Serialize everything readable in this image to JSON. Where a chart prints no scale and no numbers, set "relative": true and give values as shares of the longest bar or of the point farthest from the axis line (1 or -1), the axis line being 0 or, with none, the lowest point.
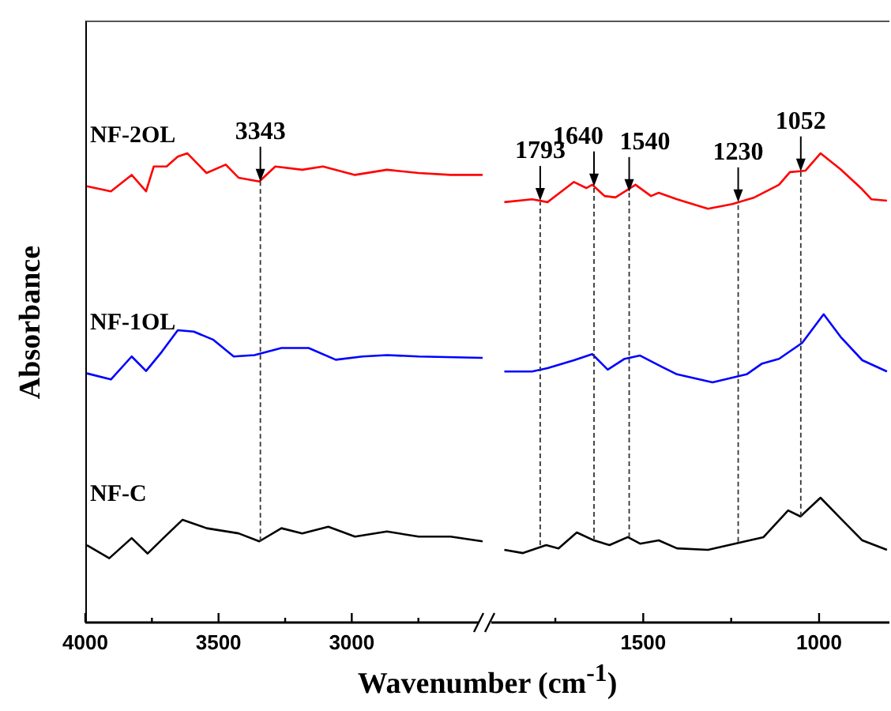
{
  "chart_data": [
    {
      "type": "line",
      "relative": true,
      "ylabel": "Absorbance",
      "xlabel": "Wavenumber (cm$^{-1}$)",
      "xlim": [
        4000,
        2500
      ],
      "xticks": [
        4000,
        {
          "value": 3750,
          "label": null
        },
        3500,
        {
          "value": 3250,
          "label": null
        },
        3000,
        {
          "value": 2750,
          "label": null
        }
      ],
      "series": [
        {
          "name": "NF-2OL",
          "color": "#ff0000",
          "x": [
            3994,
            3904,
            3826,
            3772,
            3743,
            3695,
            3653,
            3617,
            3545,
            3473,
            3425,
            3347,
            3287,
            3186,
            3108,
            2988,
            2868,
            2749,
            2629,
            2509
          ],
          "values": [
            0.93,
            0.919,
            0.954,
            0.919,
            0.972,
            0.972,
            0.993,
            1.0,
            0.958,
            0.976,
            0.948,
            0.94,
            0.972,
            0.965,
            0.972,
            0.954,
            0.965,
            0.958,
            0.954,
            0.954
          ]
        },
        {
          "name": "NF-1OL",
          "color": "#0000ff",
          "x": [
            3994,
            3904,
            3826,
            3772,
            3713,
            3653,
            3593,
            3521,
            3443,
            3365,
            3264,
            3162,
            3060,
            2960,
            2868,
            2749,
            2509
          ],
          "values": [
            0.531,
            0.518,
            0.567,
            0.536,
            0.577,
            0.623,
            0.62,
            0.603,
            0.567,
            0.57,
            0.585,
            0.585,
            0.56,
            0.567,
            0.57,
            0.567,
            0.564
          ]
        },
        {
          "name": "NF-C",
          "color": "#000000",
          "x": [
            3994,
            3910,
            3826,
            3766,
            3707,
            3635,
            3545,
            3425,
            3347,
            3264,
            3186,
            3088,
            2988,
            2868,
            2749,
            2629,
            2509
          ],
          "values": [
            0.165,
            0.137,
            0.18,
            0.147,
            0.18,
            0.219,
            0.201,
            0.19,
            0.173,
            0.201,
            0.19,
            0.204,
            0.183,
            0.194,
            0.183,
            0.183,
            0.173
          ]
        }
      ],
      "ref_lines": [
        {
          "axis": "x",
          "value": 3343,
          "line_style": "dashed",
          "color": "#333333"
        }
      ],
      "annotations": [
        {
          "text": "3343",
          "x": 3343,
          "y": 0.94
        }
      ]
    },
    {
      "type": "line",
      "relative": true,
      "xlim": [
        1950,
        800
      ],
      "xticks": [
        {
          "value": 1750,
          "label": null
        },
        1500,
        {
          "value": 1250,
          "label": null
        },
        1000
      ],
      "series": [
        {
          "color": "#ff0000",
          "x": [
            1895,
            1816,
            1772,
            1697,
            1662,
            1645,
            1610,
            1579,
            1522,
            1478,
            1456,
            1404,
            1316,
            1246,
            1184,
            1114,
            1083,
            1039,
            996,
            939,
            877,
            851,
            807
          ],
          "values": [
            0.896,
            0.902,
            0.896,
            0.939,
            0.926,
            0.933,
            0.909,
            0.906,
            0.933,
            0.909,
            0.916,
            0.902,
            0.882,
            0.892,
            0.906,
            0.933,
            0.96,
            0.963,
            1.0,
            0.966,
            0.923,
            0.902,
            0.899
          ]
        },
        {
          "color": "#0000ff",
          "x": [
            1895,
            1816,
            1772,
            1697,
            1645,
            1601,
            1553,
            1509,
            1447,
            1404,
            1303,
            1206,
            1162,
            1114,
            1048,
            987,
            939,
            877,
            807
          ],
          "values": [
            0.535,
            0.535,
            0.542,
            0.559,
            0.572,
            0.539,
            0.562,
            0.569,
            0.545,
            0.529,
            0.512,
            0.529,
            0.552,
            0.562,
            0.596,
            0.657,
            0.609,
            0.559,
            0.535
          ]
        },
        {
          "color": "#000000",
          "x": [
            1895,
            1842,
            1776,
            1741,
            1689,
            1640,
            1596,
            1544,
            1509,
            1456,
            1404,
            1316,
            1215,
            1158,
            1088,
            1053,
            996,
            939,
            877,
            807
          ],
          "values": [
            0.155,
            0.148,
            0.165,
            0.158,
            0.192,
            0.175,
            0.165,
            0.182,
            0.168,
            0.175,
            0.158,
            0.155,
            0.172,
            0.182,
            0.239,
            0.226,
            0.266,
            0.222,
            0.175,
            0.155
          ]
        }
      ],
      "ref_lines": [
        {
          "axis": "x",
          "value": 1793,
          "line_style": "dashed",
          "color": "#333333"
        },
        {
          "axis": "x",
          "value": 1640,
          "line_style": "dashed",
          "color": "#333333"
        },
        {
          "axis": "x",
          "value": 1540,
          "line_style": "dashed",
          "color": "#333333"
        },
        {
          "axis": "x",
          "value": 1230,
          "line_style": "dashed",
          "color": "#333333"
        },
        {
          "axis": "x",
          "value": 1052,
          "line_style": "dashed",
          "color": "#333333"
        }
      ],
      "annotations": [
        {
          "text": "1793",
          "x": 1793,
          "y": 0.899
        },
        {
          "text": "1640",
          "x": 1640,
          "y": 0.93
        },
        {
          "text": "1540",
          "x": 1540,
          "y": 0.918
        },
        {
          "text": "1230",
          "x": 1230,
          "y": 0.896
        },
        {
          "text": "1052",
          "x": 1052,
          "y": 0.962
        }
      ]
    }
  ]
}
